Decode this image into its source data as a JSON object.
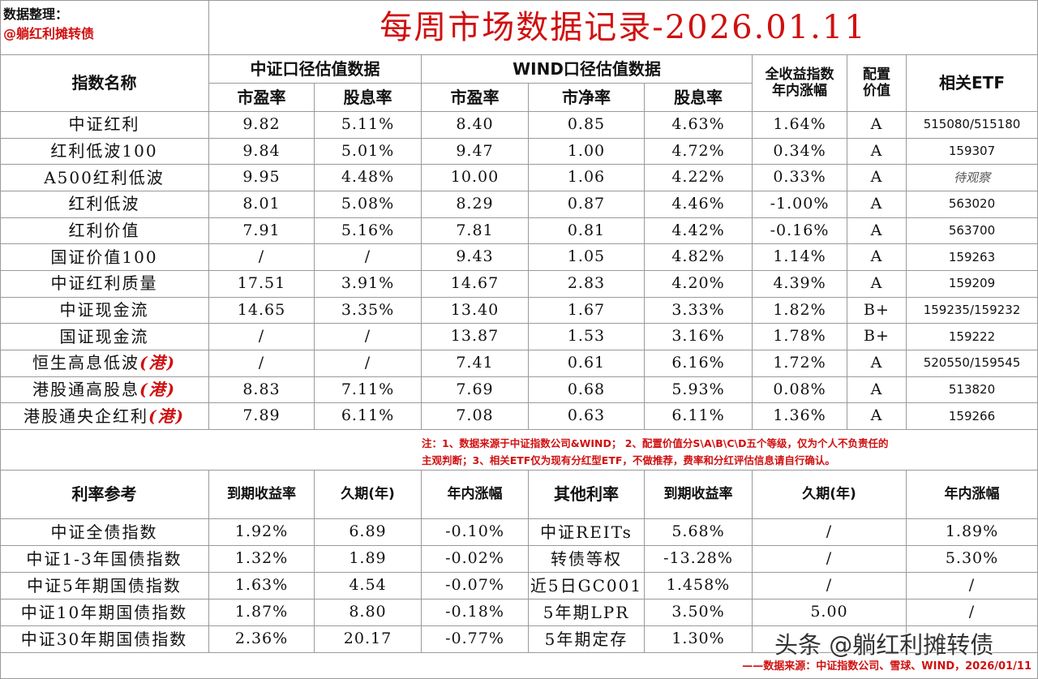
{
  "header": {
    "author_label": "数据整理：",
    "author": "@躺红利摊转债",
    "title": "每周市场数据记录-2026.01.11"
  },
  "index_table": {
    "head": {
      "name": "指数名称",
      "csi_group": "中证口径估值数据",
      "wind_group": "WIND口径估值数据",
      "sub": [
        "市盈率",
        "股息率",
        "市盈率",
        "市净率",
        "股息率"
      ],
      "tr_ytd": [
        "全收益指数",
        "年内涨幅"
      ],
      "alloc": [
        "配置",
        "价值"
      ],
      "etf": "相关ETF"
    },
    "rows": [
      {
        "name": "中证红利",
        "cells": [
          "9.82",
          "5.11%",
          "8.40",
          "0.85",
          "4.63%",
          "1.64%",
          "A",
          "515080/515180"
        ]
      },
      {
        "name": "红利低波100",
        "cells": [
          "9.84",
          "5.01%",
          "9.47",
          "1.00",
          "4.72%",
          "0.34%",
          "A",
          "159307"
        ]
      },
      {
        "name": "A500红利低波",
        "cells": [
          "9.95",
          "4.48%",
          "10.00",
          "1.06",
          "4.22%",
          "0.33%",
          "A",
          "待观察"
        ]
      },
      {
        "name": "红利低波",
        "cells": [
          "8.01",
          "5.08%",
          "8.29",
          "0.87",
          "4.46%",
          "-1.00%",
          "A",
          "563020"
        ]
      },
      {
        "name": "红利价值",
        "cells": [
          "7.91",
          "5.16%",
          "7.81",
          "0.81",
          "4.42%",
          "-0.16%",
          "A",
          "563700"
        ]
      },
      {
        "name": "国证价值100",
        "cells": [
          "/",
          "/",
          "9.43",
          "1.05",
          "4.82%",
          "1.14%",
          "A",
          "159263"
        ]
      },
      {
        "name": "中证红利质量",
        "cells": [
          "17.51",
          "3.91%",
          "14.67",
          "2.83",
          "4.20%",
          "4.39%",
          "A",
          "159209"
        ]
      },
      {
        "name": "中证现金流",
        "cells": [
          "14.65",
          "3.35%",
          "13.40",
          "1.67",
          "3.33%",
          "1.82%",
          "B+",
          "159235/159232"
        ]
      },
      {
        "name": "国证现金流",
        "cells": [
          "/",
          "/",
          "13.87",
          "1.53",
          "3.16%",
          "1.78%",
          "B+",
          "159222"
        ]
      },
      {
        "name": "恒生高息低波",
        "tag": "(港)",
        "cells": [
          "/",
          "/",
          "7.41",
          "0.61",
          "6.16%",
          "1.72%",
          "A",
          "520550/159545"
        ]
      },
      {
        "name": "港股通高股息",
        "tag": "(港)",
        "cells": [
          "8.83",
          "7.11%",
          "7.69",
          "0.68",
          "5.93%",
          "0.08%",
          "A",
          "513820"
        ]
      },
      {
        "name": "港股通央企红利",
        "tag": "(港)",
        "cells": [
          "7.89",
          "6.11%",
          "7.08",
          "0.63",
          "6.11%",
          "1.36%",
          "A",
          "159266"
        ]
      }
    ],
    "note": [
      "注：1、数据来源于中证指数公司&WIND； 2、配置价值分S\\A\\B\\C\\D五个等级，仅为个人不负责任的",
      "主观判断；3、相关ETF仅为现有分红型ETF，不做推荐，费率和分红评估信息请自行确认。"
    ]
  },
  "rate_table": {
    "head": [
      "利率参考",
      "到期收益率",
      "久期(年)",
      "年内涨幅",
      "其他利率",
      "到期收益率",
      "久期(年)",
      "年内涨幅"
    ],
    "rows": [
      [
        "中证全债指数",
        "1.92%",
        "6.89",
        "-0.10%",
        "中证REITs",
        "5.68%",
        "/",
        "1.89%"
      ],
      [
        "中证1-3年国债指数",
        "1.32%",
        "1.89",
        "-0.02%",
        "转债等权",
        "-13.28%",
        "/",
        "5.30%"
      ],
      [
        "中证5年期国债指数",
        "1.63%",
        "4.54",
        "-0.07%",
        "近5日GC001",
        "1.458%",
        "/",
        "/"
      ],
      [
        "中证10年期国债指数",
        "1.87%",
        "8.80",
        "-0.18%",
        "5年期LPR",
        "3.50%",
        "5.00",
        "/"
      ],
      [
        "中证30年期国债指数",
        "2.36%",
        "20.17",
        "-0.77%",
        "5年期定存",
        "1.30%"
      ]
    ]
  },
  "footer": {
    "source": "——数据来源：中证指数公司、雪球、WIND，2026/01/11",
    "watermark": "头条 @躺红利摊转债"
  }
}
